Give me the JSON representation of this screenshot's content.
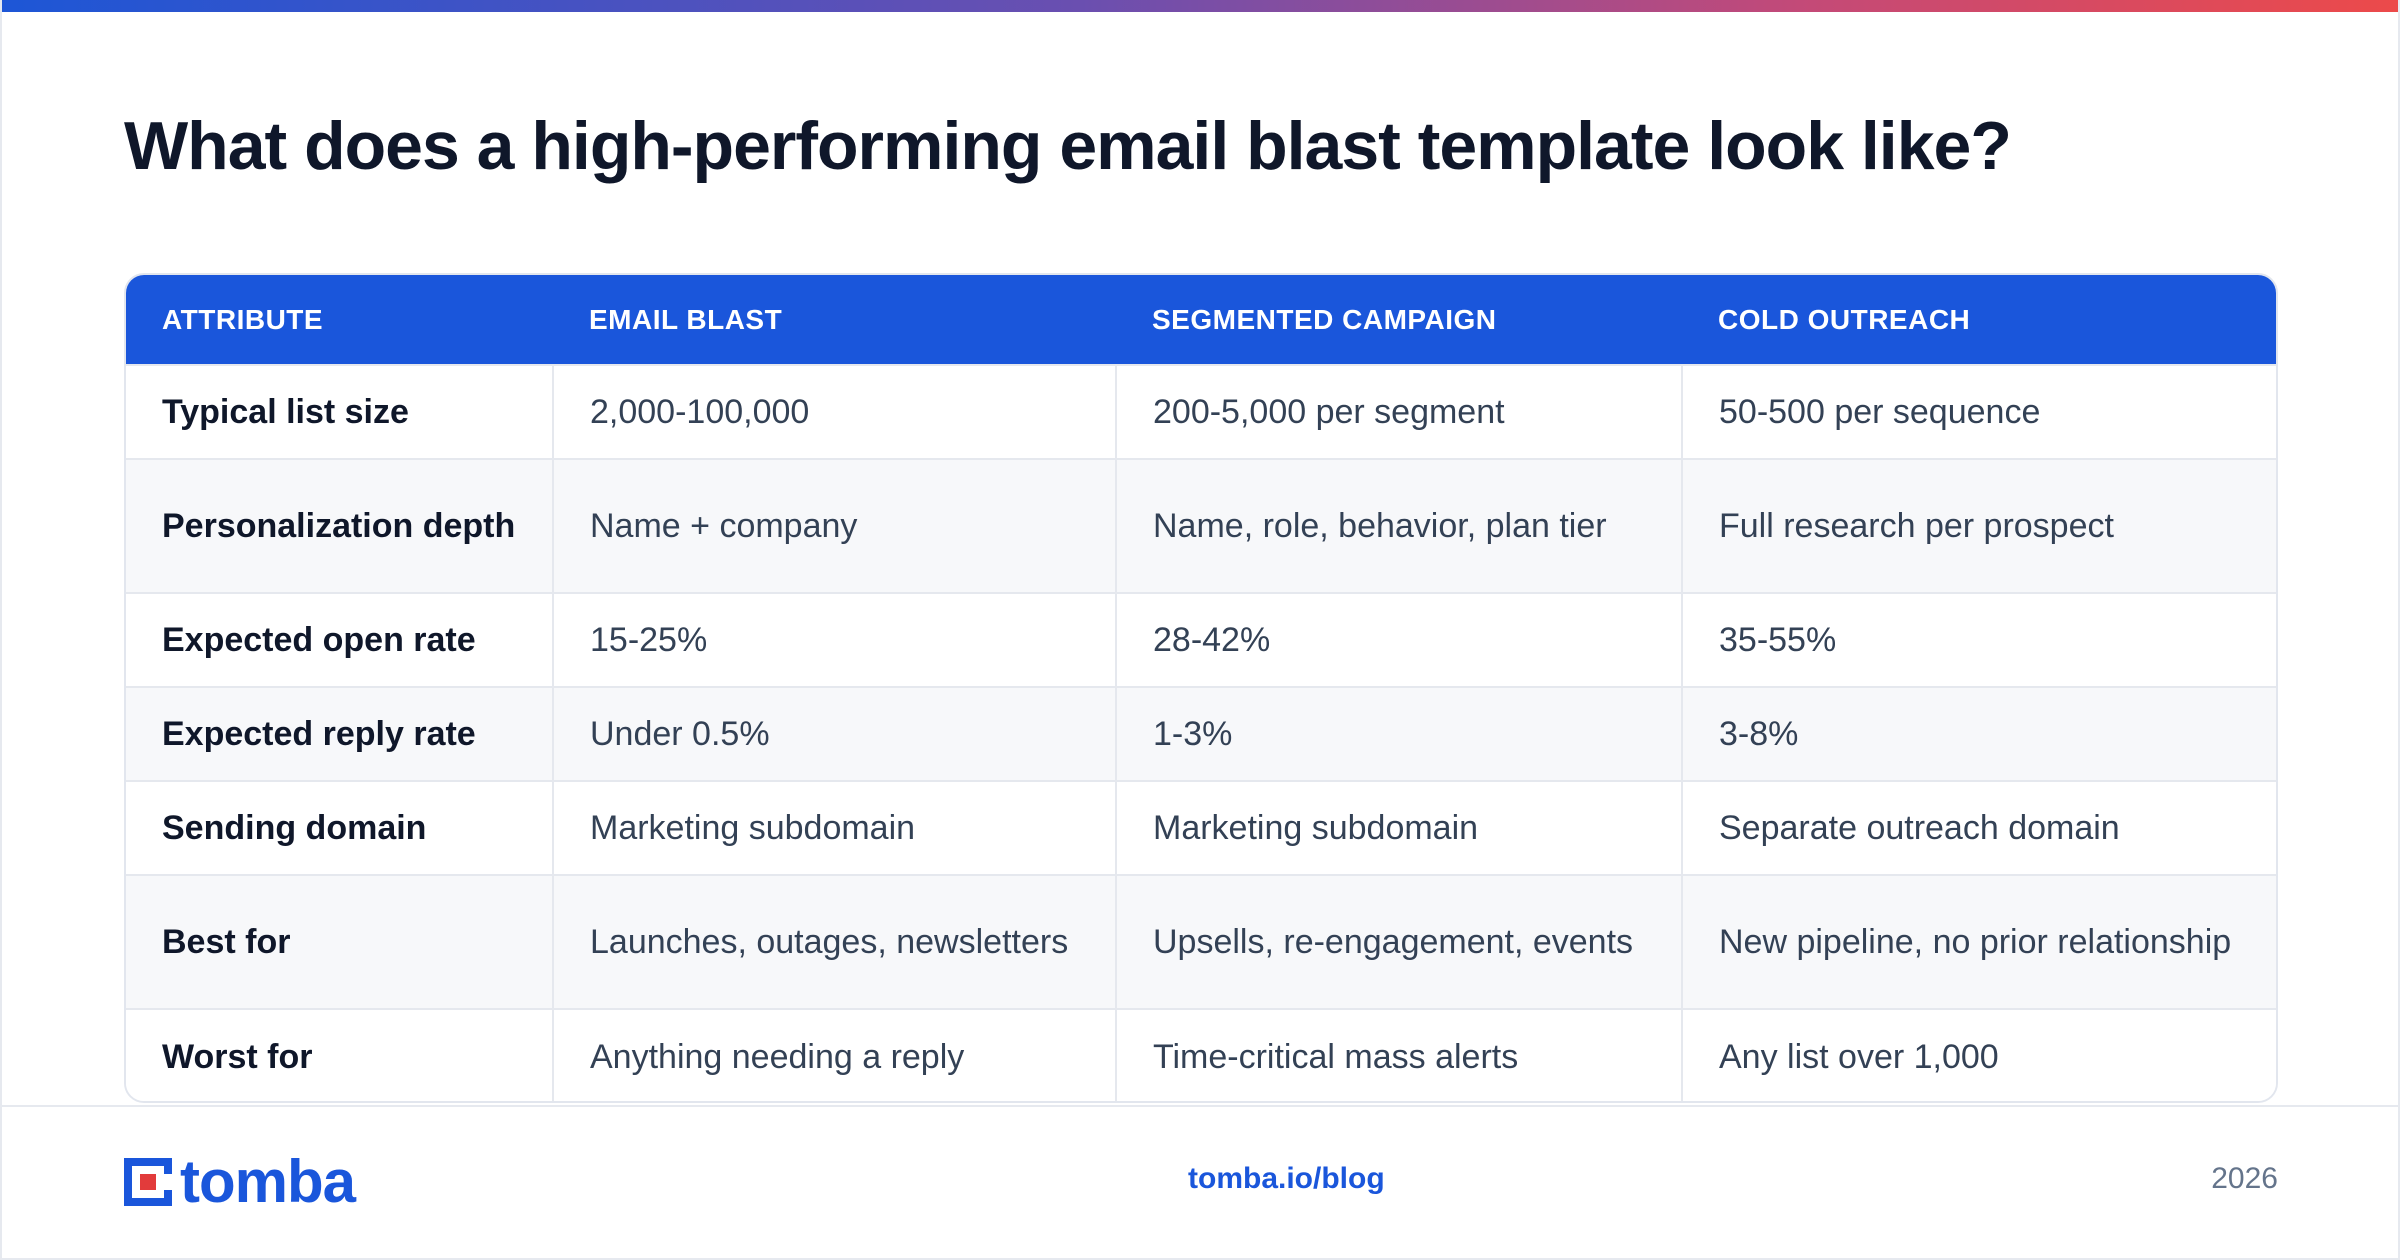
{
  "title": "What does a high-performing email blast template look like?",
  "table": {
    "headers": [
      "ATTRIBUTE",
      "EMAIL BLAST",
      "SEGMENTED CAMPAIGN",
      "COLD OUTREACH"
    ],
    "rows": [
      [
        "Typical list size",
        "2,000-100,000",
        "200-5,000 per segment",
        "50-500 per sequence"
      ],
      [
        "Personalization depth",
        "Name + company",
        "Name, role, behavior, plan tier",
        "Full research per prospect"
      ],
      [
        "Expected open rate",
        "15-25%",
        "28-42%",
        "35-55%"
      ],
      [
        "Expected reply rate",
        "Under 0.5%",
        "1-3%",
        "3-8%"
      ],
      [
        "Sending domain",
        "Marketing subdomain",
        "Marketing subdomain",
        "Separate outreach domain"
      ],
      [
        "Best for",
        "Launches, outages, newsletters",
        "Upsells, re-engagement, events",
        "New pipeline, no prior relationship"
      ],
      [
        "Worst for",
        "Anything needing a reply",
        "Time-critical mass alerts",
        "Any list over 1,000"
      ]
    ]
  },
  "footer": {
    "logo_text": "tomba",
    "link": "tomba.io/blog",
    "year": "2026"
  },
  "colors": {
    "accent": "#1a56db",
    "logo_red": "#e23b3b",
    "title": "#0f172a"
  }
}
